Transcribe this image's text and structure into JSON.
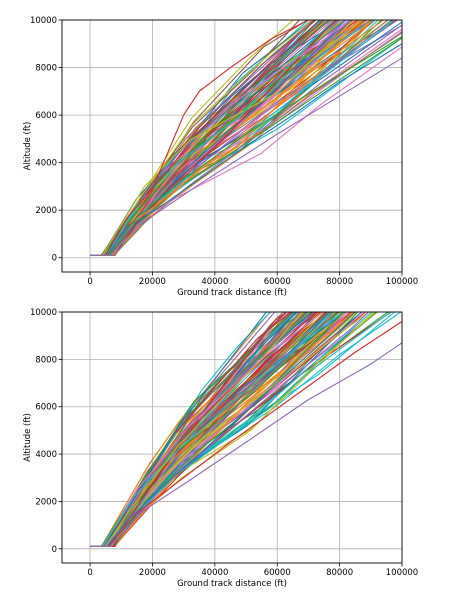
{
  "chart_data": [
    {
      "type": "line",
      "title": "",
      "xlabel": "Ground track distance (ft)",
      "ylabel": "Altitude (ft)",
      "xlim": [
        -9000,
        100000
      ],
      "ylim": [
        -600,
        10000
      ],
      "xticks": [
        0,
        20000,
        40000,
        60000,
        80000,
        100000
      ],
      "yticks": [
        0,
        2000,
        4000,
        6000,
        8000,
        10000
      ],
      "grid": true,
      "legend": "none",
      "series_count_approx": 100,
      "representative_series": [
        {
          "x": [
            0,
            3000,
            5000,
            12000,
            20000,
            30000,
            35000,
            45000,
            58000,
            70000
          ],
          "y": [
            100,
            100,
            100,
            1700,
            2900,
            6000,
            7000,
            8000,
            9200,
            10000
          ],
          "color": "#d62728"
        },
        {
          "x": [
            0,
            3000,
            5500,
            12000,
            22000,
            35000,
            50000,
            65000,
            80000,
            100000
          ],
          "y": [
            100,
            100,
            100,
            1300,
            2100,
            3300,
            4700,
            6000,
            7400,
            9000
          ],
          "color": "#1f77b4"
        },
        {
          "x": [
            0,
            3000,
            6000,
            14000,
            24000,
            38000,
            55000,
            72000,
            90000
          ],
          "y": [
            100,
            100,
            100,
            1500,
            2500,
            4000,
            5800,
            7600,
            10000
          ],
          "color": "#ff7f0e"
        },
        {
          "x": [
            0,
            3000,
            6000,
            15000,
            30000,
            50000,
            70000,
            90000,
            100000
          ],
          "y": [
            100,
            100,
            100,
            1700,
            3300,
            5200,
            6900,
            8500,
            9300
          ],
          "color": "#2ca02c"
        },
        {
          "x": [
            0,
            3000,
            6500,
            16000,
            34000,
            60000,
            80000,
            100000
          ],
          "y": [
            100,
            100,
            100,
            1400,
            3000,
            5200,
            6800,
            8400
          ],
          "color": "#9467bd"
        }
      ]
    },
    {
      "type": "line",
      "title": "",
      "xlabel": "Ground track distance (ft)",
      "ylabel": "Altitude (ft)",
      "xlim": [
        -9000,
        100000
      ],
      "ylim": [
        -600,
        10000
      ],
      "xticks": [
        0,
        20000,
        40000,
        60000,
        80000,
        100000
      ],
      "yticks": [
        0,
        2000,
        4000,
        6000,
        8000,
        10000
      ],
      "grid": true,
      "legend": "none",
      "series_count_approx": 120,
      "representative_series": [
        {
          "x": [
            0,
            3000,
            5000,
            12000,
            20000,
            28000,
            40000,
            55000,
            68000
          ],
          "y": [
            100,
            100,
            100,
            1500,
            2900,
            4300,
            6000,
            8000,
            10000
          ],
          "color": "#bcbd22"
        },
        {
          "x": [
            0,
            3000,
            5500,
            13000,
            22000,
            35000,
            50000,
            70000,
            85000
          ],
          "y": [
            100,
            100,
            100,
            1300,
            2500,
            4000,
            5800,
            8200,
            10000
          ],
          "color": "#1f77b4"
        },
        {
          "x": [
            0,
            3000,
            6000,
            15000,
            28000,
            45000,
            65000,
            85000,
            100000
          ],
          "y": [
            100,
            100,
            100,
            1500,
            2800,
            4500,
            6400,
            8300,
            9600
          ],
          "color": "#d62728"
        },
        {
          "x": [
            0,
            3000,
            6500,
            17000,
            32000,
            50000,
            70000,
            90000,
            100000
          ],
          "y": [
            100,
            100,
            100,
            1600,
            2900,
            4500,
            6300,
            7800,
            8700
          ],
          "color": "#9467bd"
        }
      ]
    }
  ]
}
